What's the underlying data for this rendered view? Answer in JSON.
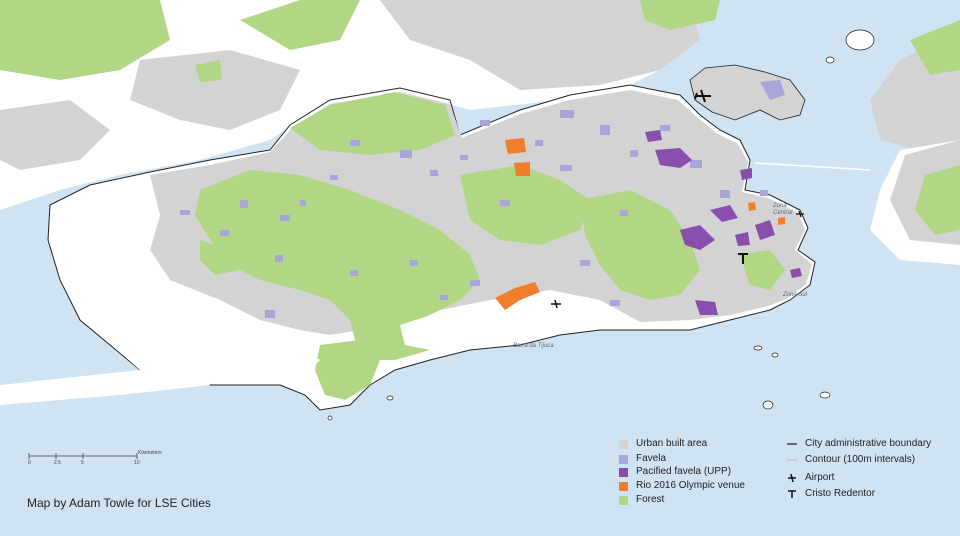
{
  "colors": {
    "sea": "#cfe3f3",
    "land_white": "#ffffff",
    "urban": "#d3d3d3",
    "favela": "#a7a5da",
    "pacified": "#8a4fad",
    "olympic": "#f07e2a",
    "forest": "#b1d684",
    "boundary": "#222222"
  },
  "map_labels": {
    "barra": "Barra da Tijuca",
    "zona_central": "Zona Central",
    "zona_sul": "Zona Sul"
  },
  "scale_bar": {
    "ticks": [
      "0",
      "2.5",
      "5",
      "10"
    ],
    "unit": "Kilometers"
  },
  "legend": {
    "urban": "Urban built area",
    "favela": "Favela",
    "pacified": "Pacified favela (UPP)",
    "olympic": "Rio 2016 Olympic venue",
    "forest": "Forest",
    "boundary": "City administrative boundary",
    "contour": "Contour (100m intervals)",
    "airport": "Airport",
    "cristo": "Cristo Redentor"
  },
  "icons": {
    "airport": "airport-icon",
    "cristo": "cristo-redentor-icon"
  },
  "credit": "Map by Adam Towle for LSE Cities"
}
